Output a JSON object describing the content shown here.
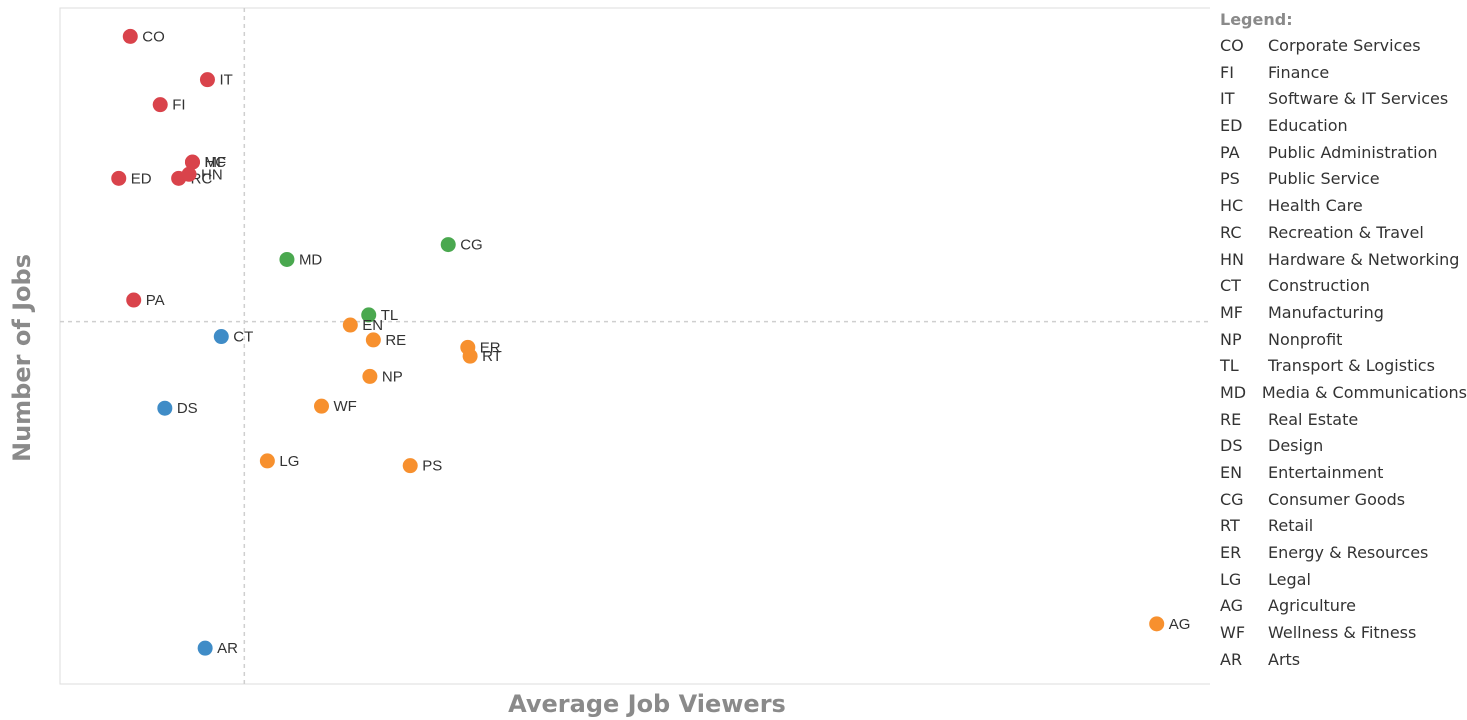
{
  "chart_data": {
    "type": "scatter",
    "xlabel": "Average Job Viewers",
    "ylabel": "Number of Jobs",
    "xlim": [
      0,
      100
    ],
    "ylim": [
      0,
      100
    ],
    "reference_lines": {
      "x": 16,
      "y": 53.6
    },
    "grid": false,
    "legend_placement": "right",
    "colors": {
      "red": "#d9434b",
      "green": "#4aa84f",
      "blue": "#3f8cc7",
      "orange": "#f7902e"
    },
    "points": [
      {
        "code": "CO",
        "x": 6.1,
        "y": 95.8,
        "group": "red"
      },
      {
        "code": "IT",
        "x": 12.8,
        "y": 89.4,
        "group": "red"
      },
      {
        "code": "FI",
        "x": 8.7,
        "y": 85.7,
        "group": "red"
      },
      {
        "code": "MF",
        "x": 11.5,
        "y": 77.2,
        "group": "red"
      },
      {
        "code": "HC",
        "x": 11.5,
        "y": 77.2,
        "group": "red"
      },
      {
        "code": "ED",
        "x": 5.1,
        "y": 74.8,
        "group": "red"
      },
      {
        "code": "RC",
        "x": 10.3,
        "y": 74.8,
        "group": "red"
      },
      {
        "code": "HN",
        "x": 11.2,
        "y": 75.4,
        "group": "red"
      },
      {
        "code": "MD",
        "x": 19.7,
        "y": 62.8,
        "group": "green"
      },
      {
        "code": "CG",
        "x": 33.7,
        "y": 65.0,
        "group": "green"
      },
      {
        "code": "PA",
        "x": 6.4,
        "y": 56.8,
        "group": "red"
      },
      {
        "code": "TL",
        "x": 26.8,
        "y": 54.6,
        "group": "green"
      },
      {
        "code": "EN",
        "x": 25.2,
        "y": 53.1,
        "group": "orange"
      },
      {
        "code": "RE",
        "x": 27.2,
        "y": 50.9,
        "group": "orange"
      },
      {
        "code": "CT",
        "x": 14.0,
        "y": 51.4,
        "group": "blue"
      },
      {
        "code": "ER",
        "x": 35.4,
        "y": 49.8,
        "group": "orange"
      },
      {
        "code": "RT",
        "x": 35.6,
        "y": 48.5,
        "group": "orange"
      },
      {
        "code": "NP",
        "x": 26.9,
        "y": 45.5,
        "group": "orange"
      },
      {
        "code": "WF",
        "x": 22.7,
        "y": 41.1,
        "group": "orange"
      },
      {
        "code": "DS",
        "x": 9.1,
        "y": 40.8,
        "group": "blue"
      },
      {
        "code": "LG",
        "x": 18.0,
        "y": 33.0,
        "group": "orange"
      },
      {
        "code": "PS",
        "x": 30.4,
        "y": 32.3,
        "group": "orange"
      },
      {
        "code": "AG",
        "x": 95.2,
        "y": 8.9,
        "group": "orange"
      },
      {
        "code": "AR",
        "x": 12.6,
        "y": 5.3,
        "group": "blue"
      }
    ]
  },
  "legend": {
    "title": "Legend:",
    "items": [
      {
        "code": "CO",
        "name": "Corporate Services"
      },
      {
        "code": "FI",
        "name": "Finance"
      },
      {
        "code": "IT",
        "name": "Software & IT Services"
      },
      {
        "code": "ED",
        "name": "Education"
      },
      {
        "code": "PA",
        "name": "Public Administration"
      },
      {
        "code": "PS",
        "name": "Public Service"
      },
      {
        "code": "HC",
        "name": "Health Care"
      },
      {
        "code": "RC",
        "name": "Recreation & Travel"
      },
      {
        "code": "HN",
        "name": "Hardware & Networking"
      },
      {
        "code": "CT",
        "name": "Construction"
      },
      {
        "code": "MF",
        "name": "Manufacturing"
      },
      {
        "code": "NP",
        "name": "Nonprofit"
      },
      {
        "code": "TL",
        "name": "Transport & Logistics"
      },
      {
        "code": "MD",
        "name": "Media & Communications"
      },
      {
        "code": "RE",
        "name": "Real Estate"
      },
      {
        "code": "DS",
        "name": "Design"
      },
      {
        "code": "EN",
        "name": "Entertainment"
      },
      {
        "code": "CG",
        "name": "Consumer Goods"
      },
      {
        "code": "RT",
        "name": "Retail"
      },
      {
        "code": "ER",
        "name": "Energy & Resources"
      },
      {
        "code": "LG",
        "name": "Legal"
      },
      {
        "code": "AG",
        "name": "Agriculture"
      },
      {
        "code": "WF",
        "name": "Wellness & Fitness"
      },
      {
        "code": "AR",
        "name": "Arts"
      }
    ]
  }
}
